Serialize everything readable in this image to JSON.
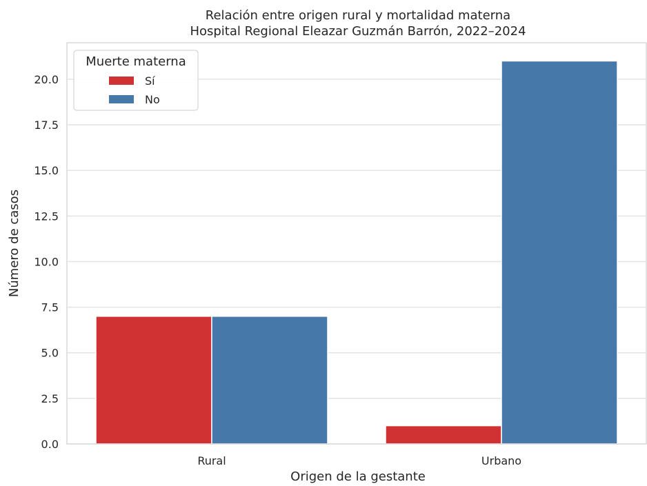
{
  "chart_data": {
    "type": "bar",
    "title": "Relación entre origen rural y mortalidad materna",
    "subtitle": "Hospital Regional Eleazar Guzmán Barrón, 2022–2024",
    "xlabel": "Origen de la gestante",
    "ylabel": "Número de casos",
    "categories": [
      "Rural",
      "Urbano"
    ],
    "series": [
      {
        "name": "Sí",
        "color": "#d03234",
        "values": [
          7,
          1
        ]
      },
      {
        "name": "No",
        "color": "#4679aa",
        "values": [
          7,
          21
        ]
      }
    ],
    "ylim": [
      0,
      22
    ],
    "yticks": [
      "0.0",
      "2.5",
      "5.0",
      "7.5",
      "10.0",
      "12.5",
      "15.0",
      "17.5",
      "20.0"
    ],
    "grid": true,
    "legend": {
      "title": "Muerte materna",
      "placement": "top-left"
    }
  }
}
